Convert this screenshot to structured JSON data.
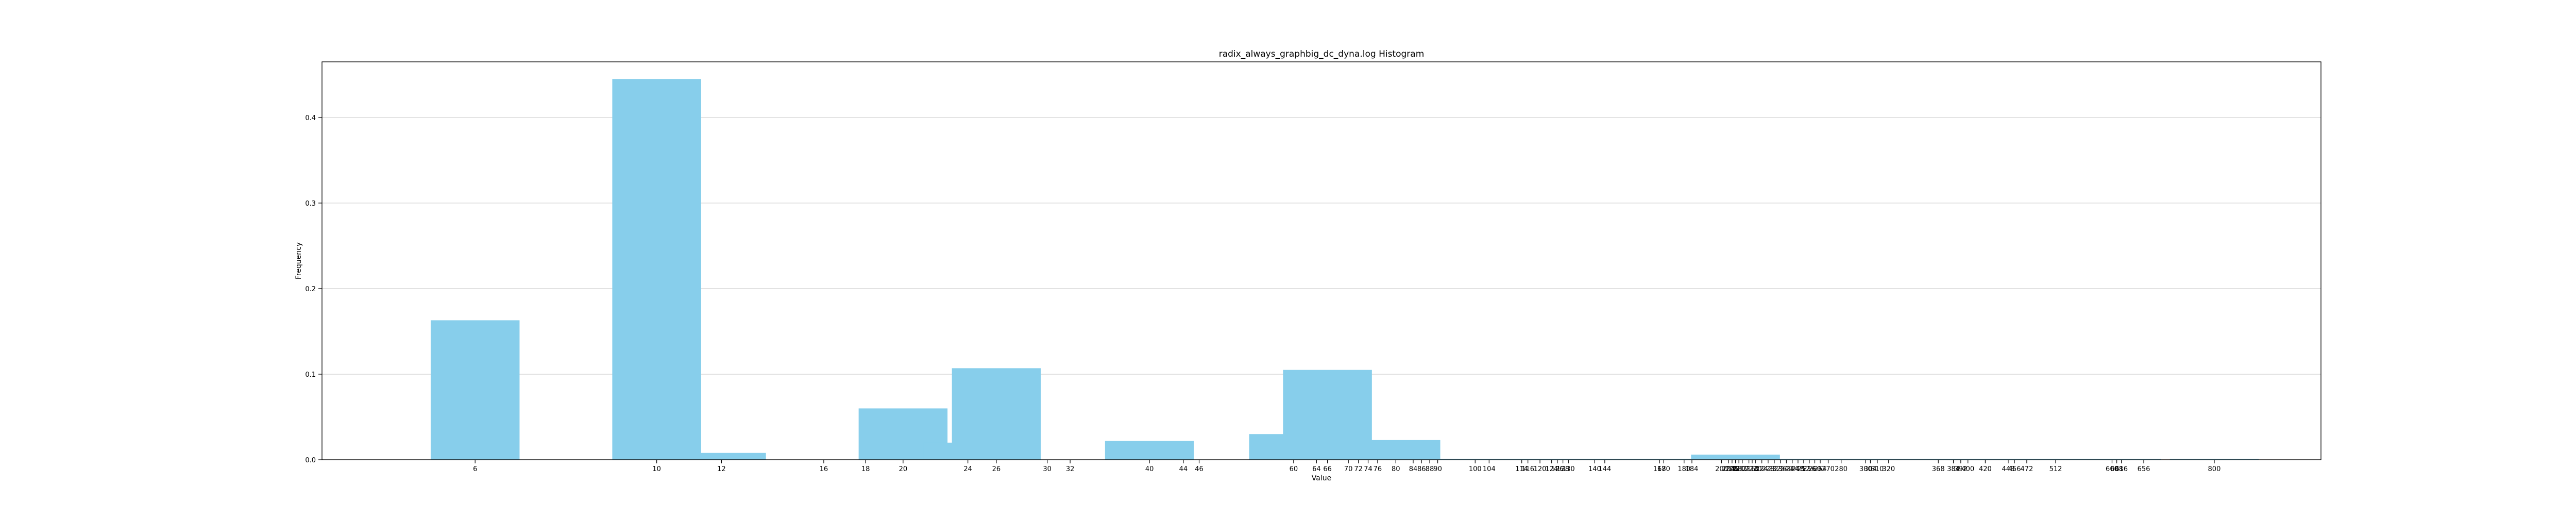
{
  "chart_data": {
    "type": "bar",
    "title": "radix_always_graphbig_dc_dyna.log Histogram",
    "xlabel": "Value",
    "ylabel": "Frequency",
    "xscale": "log",
    "xlim": [
      3.9,
      1080
    ],
    "ylim": [
      0,
      0.465
    ],
    "grid": "horizontal",
    "bar_color": "#87ceeb",
    "y_ticks": [
      0.0,
      0.1,
      0.2,
      0.3,
      0.4
    ],
    "y_tick_labels": [
      "0.0",
      "0.1",
      "0.2",
      "0.3",
      "0.4"
    ],
    "x_ticks": [
      6,
      10,
      12,
      16,
      18,
      20,
      24,
      26,
      30,
      32,
      40,
      44,
      46,
      60,
      64,
      66,
      70,
      72,
      74,
      76,
      80,
      84,
      86,
      88,
      90,
      100,
      104,
      114,
      116,
      120,
      124,
      126,
      128,
      130,
      140,
      144,
      168,
      170,
      180,
      184,
      200,
      204,
      206,
      208,
      210,
      212,
      216,
      218,
      220,
      224,
      228,
      232,
      236,
      240,
      244,
      248,
      252,
      256,
      260,
      264,
      270,
      280,
      300,
      304,
      310,
      320,
      368,
      384,
      392,
      400,
      420,
      448,
      456,
      472,
      512,
      600,
      608,
      616,
      656,
      800
    ],
    "x_tick_labels": [
      "6",
      "10",
      "12",
      "16",
      "18",
      "20",
      "24",
      "26",
      "30",
      "32",
      "40",
      "44",
      "46",
      "60",
      "64",
      "66",
      "70",
      "72",
      "74",
      "76",
      "80",
      "84",
      "86",
      "88",
      "90",
      "100",
      "104",
      "114",
      "116",
      "120",
      "124",
      "126",
      "128",
      "130",
      "140",
      "144",
      "168",
      "170",
      "180",
      "184",
      "200",
      "204",
      "206",
      "208",
      "210",
      "212",
      "216",
      "218",
      "220",
      "224",
      "228",
      "232",
      "236",
      "240",
      "244",
      "248",
      "252",
      "256",
      "260",
      "264",
      "270",
      "280",
      "300",
      "304",
      "310",
      "320",
      "368",
      "384",
      "392",
      "400",
      "420",
      "448",
      "456",
      "472",
      "512",
      "600",
      "608",
      "616",
      "656",
      "800"
    ],
    "bars": [
      {
        "x": 6,
        "value": 0.163
      },
      {
        "x": 10,
        "value": 0.445
      },
      {
        "x": 12,
        "value": 0.008
      },
      {
        "x": 20,
        "value": 0.06
      },
      {
        "x": 24,
        "value": 0.02
      },
      {
        "x": 26,
        "value": 0.107
      },
      {
        "x": 40,
        "value": 0.022
      },
      {
        "x": 60,
        "value": 0.03
      },
      {
        "x": 66,
        "value": 0.105
      },
      {
        "x": 80,
        "value": 0.023
      },
      {
        "x": 84,
        "value": 0.001
      },
      {
        "x": 88,
        "value": 0.001
      },
      {
        "x": 100,
        "value": 0.001
      },
      {
        "x": 120,
        "value": 0.001
      },
      {
        "x": 128,
        "value": 0.001
      },
      {
        "x": 144,
        "value": 0.001
      },
      {
        "x": 168,
        "value": 0.001
      },
      {
        "x": 200,
        "value": 0.001
      },
      {
        "x": 208,
        "value": 0.006
      },
      {
        "x": 216,
        "value": 0.001
      },
      {
        "x": 232,
        "value": 0.001
      },
      {
        "x": 256,
        "value": 0.001
      },
      {
        "x": 280,
        "value": 0.001
      },
      {
        "x": 320,
        "value": 0.001
      },
      {
        "x": 400,
        "value": 0.001
      },
      {
        "x": 456,
        "value": 0.001
      },
      {
        "x": 512,
        "value": 0.001
      },
      {
        "x": 608,
        "value": 0.001
      },
      {
        "x": 800,
        "value": 0.001
      }
    ]
  }
}
